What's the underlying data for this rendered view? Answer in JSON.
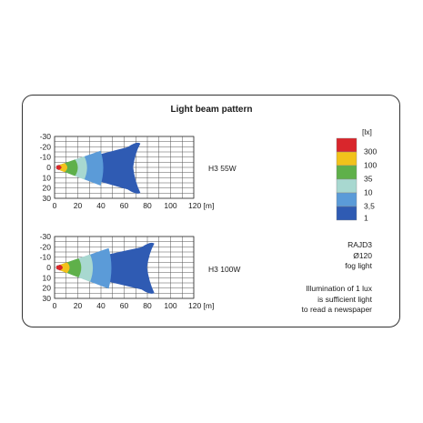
{
  "card_title": "Light beam pattern",
  "chart_data": [
    {
      "type": "heatmap",
      "series_label": "H3 55W",
      "xlabel": "[m]",
      "x_ticks": [
        0,
        20,
        40,
        60,
        80,
        100,
        120
      ],
      "x_tick_labels": [
        "0",
        "20",
        "40",
        "60",
        "80",
        "100",
        "120 [m]"
      ],
      "y_ticks": [
        -30,
        -20,
        -10,
        0,
        10,
        20,
        30
      ],
      "xlim": [
        0,
        120
      ],
      "ylim": [
        -30,
        30
      ],
      "grid": true,
      "lux_level_reach_m": {
        "300": 6,
        "100": 11,
        "35": 20,
        "10": 28,
        "3,5": 42,
        "1": 74
      }
    },
    {
      "type": "heatmap",
      "series_label": "H3 100W",
      "xlabel": "[m]",
      "x_ticks": [
        0,
        20,
        40,
        60,
        80,
        100,
        120
      ],
      "x_tick_labels": [
        "0",
        "20",
        "40",
        "60",
        "80",
        "100",
        "120 [m]"
      ],
      "y_ticks": [
        -30,
        -20,
        -10,
        0,
        10,
        20,
        30
      ],
      "xlim": [
        0,
        120
      ],
      "ylim": [
        -30,
        30
      ],
      "grid": true,
      "lux_level_reach_m": {
        "300": 7,
        "100": 13,
        "35": 23,
        "10": 33,
        "3,5": 49,
        "1": 86
      }
    }
  ],
  "legend": {
    "unit": "[lx]",
    "items": [
      {
        "label": "300",
        "color": "#d9262c"
      },
      {
        "label": "100",
        "color": "#f2c21b"
      },
      {
        "label": "35",
        "color": "#5fb04a"
      },
      {
        "label": "10",
        "color": "#a8d8d0"
      },
      {
        "label": "3,5",
        "color": "#5b9bd8"
      },
      {
        "label": "1",
        "color": "#2f5bb3"
      }
    ]
  },
  "info": {
    "model": "RAJD3",
    "diameter": "Ø120",
    "type": "fog light",
    "note_line1": "Illumination of 1 lux",
    "note_line2": "is sufficient light",
    "note_line3": "to read a newspaper"
  }
}
